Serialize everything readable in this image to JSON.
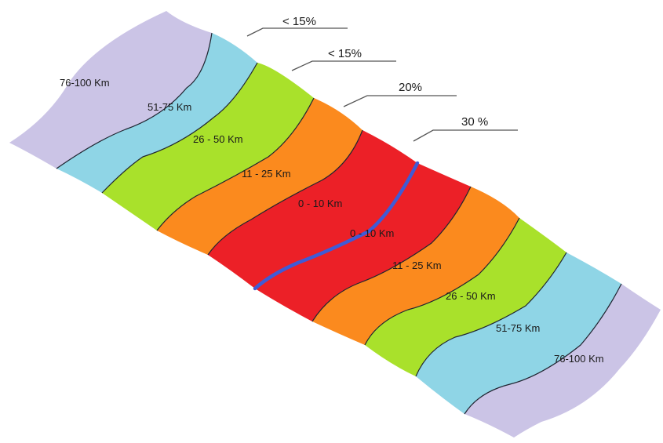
{
  "colors": {
    "outer": "#cbc4e6",
    "mid": "#8fd5e6",
    "inner": "#a9e12b",
    "near": "#fb8a1e",
    "core": "#ec2027",
    "center_line": "#3f5bd6",
    "seam": "#1f2430"
  },
  "zones": {
    "z1": "76-100 Km",
    "z2": "51-75 Km",
    "z3": "26 - 50 Km",
    "z4": "11 - 25 Km",
    "z5": "0 - 10 Km",
    "z6": "0 - 10 Km",
    "z7": "11 - 25 Km",
    "z8": "26 - 50 Km",
    "z9": "51-75 Km",
    "z10": "76-100 Km"
  },
  "percentages": {
    "p1": "< 15%",
    "p2": "< 15%",
    "p3": "20%",
    "p4": "30 %"
  }
}
